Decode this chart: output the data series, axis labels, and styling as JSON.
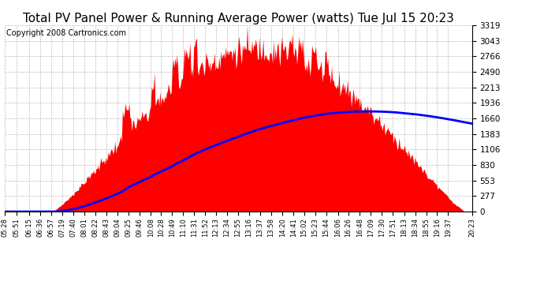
{
  "title": "Total PV Panel Power & Running Average Power (watts) Tue Jul 15 20:23",
  "copyright": "Copyright 2008 Cartronics.com",
  "yticks": [
    0.0,
    276.6,
    553.2,
    829.9,
    1106.5,
    1383.1,
    1659.7,
    1936.3,
    2212.9,
    2489.6,
    2766.2,
    3042.8,
    3319.4
  ],
  "ymax": 3319.4,
  "ymin": 0.0,
  "xtick_labels": [
    "05:28",
    "05:51",
    "06:15",
    "06:36",
    "06:57",
    "07:19",
    "07:40",
    "08:01",
    "08:22",
    "08:43",
    "09:04",
    "09:25",
    "09:46",
    "10:08",
    "10:28",
    "10:49",
    "11:10",
    "11:31",
    "11:52",
    "12:13",
    "12:34",
    "12:55",
    "13:16",
    "13:37",
    "13:58",
    "14:20",
    "14:41",
    "15:02",
    "15:23",
    "15:44",
    "16:06",
    "16:26",
    "16:48",
    "17:09",
    "17:30",
    "17:51",
    "18:13",
    "18:34",
    "18:55",
    "19:16",
    "19:37",
    "20:23"
  ],
  "pv_color": "#FF0000",
  "avg_color": "#0000FF",
  "background_color": "#FFFFFF",
  "plot_bg_color": "#FFFFFF",
  "grid_color": "#BBBBBB",
  "title_fontsize": 11,
  "copyright_fontsize": 7
}
